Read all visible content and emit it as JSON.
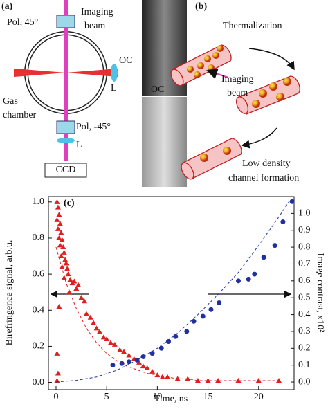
{
  "panel_a": {
    "label": "(a)",
    "pol_top": "Pol, 45°",
    "imaging": "Imaging",
    "beam": "beam",
    "oc": "OC",
    "lens_right": "L",
    "gas": "Gas",
    "chamber": "chamber",
    "pol_bottom": "Pol, -45°",
    "lens_bottom": "L",
    "ccd": "CCD"
  },
  "panel_b": {
    "label": "(b)",
    "thermalization": "Thermalization",
    "imaging": "Imaging",
    "beam": "beam",
    "oc": "OC",
    "low_density": "Low density",
    "channel_formation": "channel formation"
  },
  "chart_data": {
    "type": "scatter",
    "label": "(c)",
    "x_label": "Time, ns",
    "y_label": "Birefringence signal, arb.u.",
    "y2_label": "Image contrast, x10²",
    "xlim": [
      -0.75,
      23.5
    ],
    "xticks": [
      0,
      5,
      10,
      15,
      20
    ],
    "ylim": [
      -0.04,
      1.03
    ],
    "yticks": [
      {
        "value": 0,
        "label": "0.0"
      },
      0.2,
      0.4,
      0.6,
      0.8,
      {
        "value": 1,
        "label": "1.0"
      }
    ],
    "y2lim": [
      -0.045,
      1.1
    ],
    "y2ticks": [
      {
        "value": 0,
        "label": "0.0"
      },
      0.1,
      0.2,
      0.3,
      0.4,
      0.5,
      0.6,
      0.7,
      0.8,
      0.9,
      {
        "value": 1,
        "label": "1.0"
      }
    ],
    "series": [
      {
        "color": "#e02020",
        "marker": "triangle",
        "axis": "y",
        "x": [
          0.1,
          0.2,
          0.3,
          0.1,
          0.4,
          0.2,
          0.5,
          0.3,
          0.6,
          0.4,
          0.7,
          0.8,
          0.5,
          0.9,
          1.0,
          0.6,
          1.1,
          1.2,
          0.8,
          1.4,
          1.6,
          1.8,
          2.0,
          2.2,
          1.3,
          2.5,
          2.8,
          0.3,
          3.0,
          3.4,
          3.7,
          4.0,
          4.3,
          4.7,
          5.0,
          5.4,
          5.8,
          6.3,
          6.7,
          7.2,
          7.7,
          8.2,
          8.6,
          9.0,
          9.5,
          10.0,
          10.5,
          11,
          12,
          13,
          14,
          15,
          16,
          18,
          20,
          22,
          0.1,
          0.2,
          0.1
        ],
        "values": [
          1.0,
          0.97,
          0.93,
          0.9,
          0.88,
          0.85,
          0.83,
          0.8,
          0.79,
          0.76,
          0.75,
          0.72,
          0.7,
          0.68,
          0.66,
          0.64,
          0.63,
          0.6,
          0.58,
          0.57,
          0.55,
          0.56,
          0.52,
          0.54,
          0.5,
          0.47,
          0.45,
          0.42,
          0.38,
          0.36,
          0.33,
          0.3,
          0.28,
          0.25,
          0.24,
          0.22,
          0.21,
          0.18,
          0.17,
          0.15,
          0.13,
          0.11,
          0.09,
          0.08,
          0.06,
          0.04,
          0.03,
          0.03,
          0.02,
          0.02,
          0.01,
          0.01,
          0.01,
          0.01,
          0.01,
          0.01,
          0.16,
          0.05,
          0.01
        ]
      },
      {
        "color": "#2030a0",
        "marker": "circle",
        "axis": "y2",
        "x": [
          5.6,
          6.5,
          7.2,
          8,
          8.6,
          9.5,
          10.4,
          11.1,
          11.8,
          12.9,
          13.6,
          14.5,
          15.3,
          16.1,
          18.0,
          19.0,
          19.6,
          20.5,
          21.6,
          22.4,
          23.3
        ],
        "values": [
          0.1,
          0.11,
          0.12,
          0.13,
          0.15,
          0.17,
          0.2,
          0.24,
          0.27,
          0.3,
          0.36,
          0.39,
          0.43,
          0.47,
          0.6,
          0.61,
          0.64,
          0.74,
          0.81,
          0.95,
          1.07
        ]
      },
      {
        "color": "#e02020",
        "marker": "dashed",
        "axis": "y",
        "x": [
          0,
          1,
          2,
          3,
          4,
          5,
          6,
          7,
          8,
          9,
          10,
          11,
          12,
          13,
          14,
          15,
          16,
          17,
          18,
          19,
          20,
          21,
          22
        ],
        "values": [
          0.75,
          0.55,
          0.41,
          0.3,
          0.22,
          0.16,
          0.12,
          0.09,
          0.07,
          0.05,
          0.04,
          0.03,
          0.02,
          0.02,
          0.01,
          0.01,
          0.01,
          0.01,
          0.01,
          0.01,
          0.01,
          0.01,
          0.01
        ]
      },
      {
        "color": "#2030a0",
        "marker": "dashed",
        "axis": "y2",
        "x": [
          0,
          2,
          4,
          6,
          8,
          10,
          12,
          14,
          16,
          18,
          20,
          22,
          23
        ],
        "values": [
          0,
          0.01,
          0.03,
          0.07,
          0.13,
          0.2,
          0.29,
          0.4,
          0.52,
          0.65,
          0.81,
          0.98,
          1.07
        ]
      }
    ]
  }
}
